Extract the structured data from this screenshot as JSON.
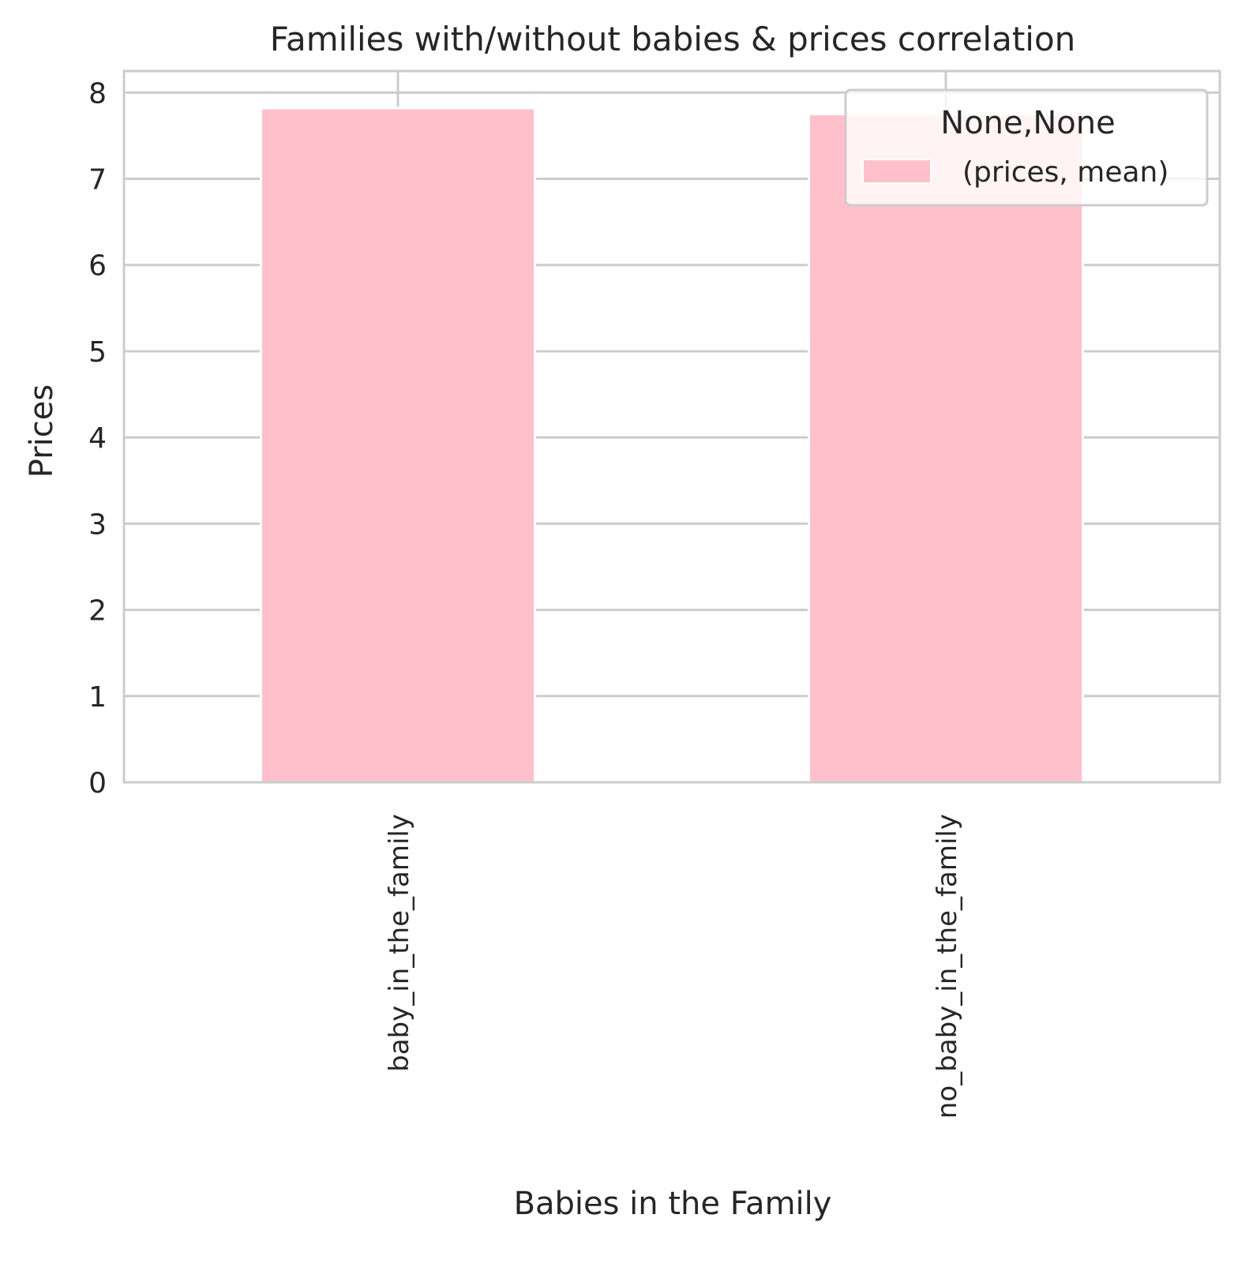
{
  "chart_data": {
    "type": "bar",
    "title": "Families with/without babies & prices correlation",
    "xlabel": "Babies in the Family",
    "ylabel": "Prices",
    "categories": [
      "baby_in_the_family",
      "no_baby_in_the_family"
    ],
    "series": [
      {
        "name": "(prices, mean)",
        "values": [
          7.82,
          7.75
        ],
        "color": "#ffc0cb"
      }
    ],
    "ylim": [
      0,
      8.25
    ],
    "yticks": [
      0,
      1,
      2,
      3,
      4,
      5,
      6,
      7,
      8
    ],
    "grid": true,
    "legend": {
      "title": "None,None",
      "placement": "top-right"
    },
    "colors": {
      "grid": "#cccccc",
      "axes_edge": "#cccccc",
      "text": "#262626",
      "background": "#ffffff"
    }
  }
}
